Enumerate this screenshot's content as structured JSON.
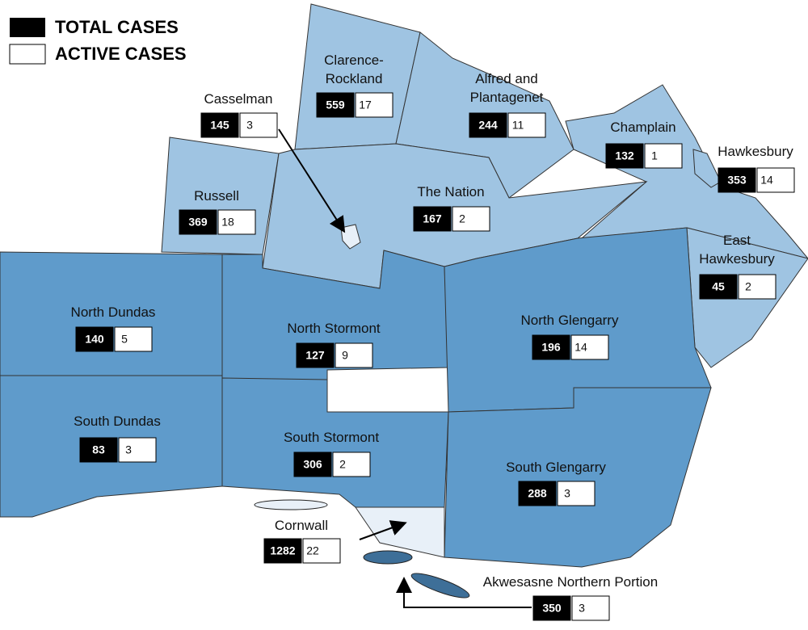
{
  "legend": {
    "total": "TOTAL CASES",
    "active": "ACTIVE CASES"
  },
  "regions": [
    {
      "name": [
        "Casselman"
      ],
      "total": 145,
      "active": 3
    },
    {
      "name": [
        "Clarence-",
        "Rockland"
      ],
      "total": 559,
      "active": 17
    },
    {
      "name": [
        "Alfred and",
        "Plantagenet"
      ],
      "total": 244,
      "active": 11
    },
    {
      "name": [
        "Champlain"
      ],
      "total": 132,
      "active": 1
    },
    {
      "name": [
        "Hawkesbury"
      ],
      "total": 353,
      "active": 14
    },
    {
      "name": [
        "Russell"
      ],
      "total": 369,
      "active": 18
    },
    {
      "name": [
        "The Nation"
      ],
      "total": 167,
      "active": 2
    },
    {
      "name": [
        "East",
        "Hawkesbury"
      ],
      "total": 45,
      "active": 2
    },
    {
      "name": [
        "North Dundas"
      ],
      "total": 140,
      "active": 5
    },
    {
      "name": [
        "North Stormont"
      ],
      "total": 127,
      "active": 9
    },
    {
      "name": [
        "North Glengarry"
      ],
      "total": 196,
      "active": 14
    },
    {
      "name": [
        "South Dundas"
      ],
      "total": 83,
      "active": 3
    },
    {
      "name": [
        "South Stormont"
      ],
      "total": 306,
      "active": 2
    },
    {
      "name": [
        "South Glengarry"
      ],
      "total": 288,
      "active": 3
    },
    {
      "name": [
        "Cornwall"
      ],
      "total": 1282,
      "active": 22
    },
    {
      "name": [
        "Akwesasne Northern Portion"
      ],
      "total": 350,
      "active": 3
    }
  ]
}
